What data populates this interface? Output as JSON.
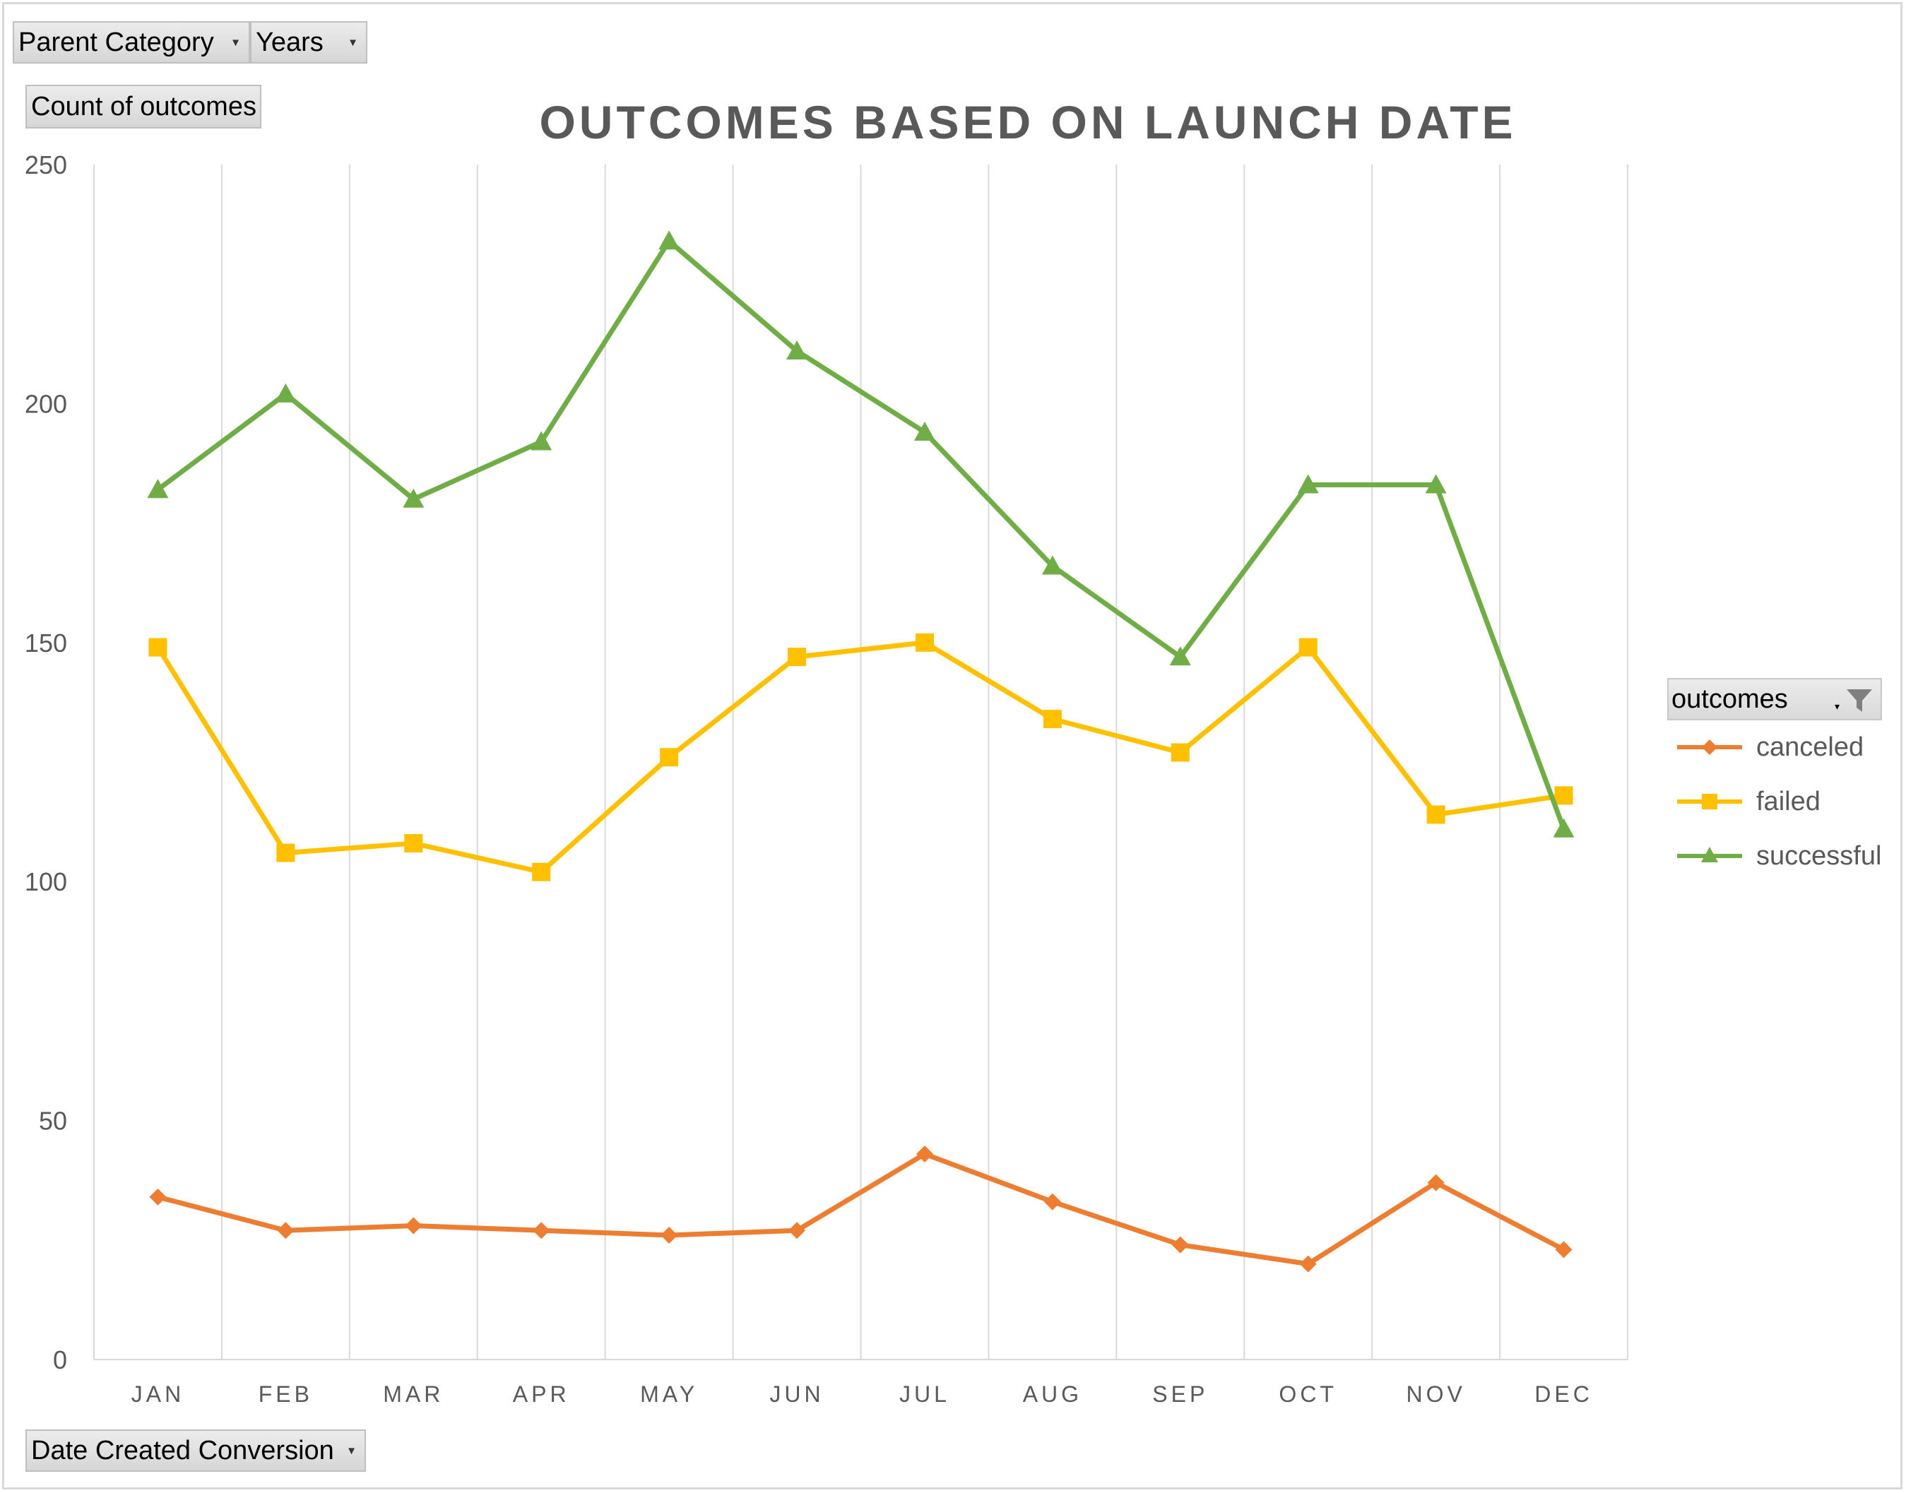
{
  "filters": {
    "parent_category": "Parent Category",
    "years": "Years",
    "values_field": "Count of outcomes",
    "axis_field": "Date Created Conversion"
  },
  "legend": {
    "title": "outcomes",
    "items": [
      "canceled",
      "failed",
      "successful"
    ]
  },
  "colors": {
    "canceled": "#ED7D31",
    "failed": "#FFC000",
    "successful": "#70AD47",
    "gridline": "#d9d9d9",
    "axis_text": "#595959"
  },
  "icons": {
    "filter": "funnel-filter-icon",
    "dropdown": "dropdown-arrow-icon"
  },
  "chart_data": {
    "type": "line",
    "title": "OUTCOMES BASED ON LAUNCH DATE",
    "xlabel": "",
    "ylabel": "",
    "categories": [
      "JAN",
      "FEB",
      "MAR",
      "APR",
      "MAY",
      "JUN",
      "JUL",
      "AUG",
      "SEP",
      "OCT",
      "NOV",
      "DEC"
    ],
    "ylim": [
      0,
      250
    ],
    "yticks": [
      0,
      50,
      100,
      150,
      200,
      250
    ],
    "grid": "vertical",
    "legend_position": "right",
    "series": [
      {
        "name": "canceled",
        "marker": "diamond",
        "values": [
          34,
          27,
          28,
          27,
          26,
          27,
          43,
          33,
          24,
          20,
          37,
          23
        ]
      },
      {
        "name": "failed",
        "marker": "square",
        "values": [
          149,
          106,
          108,
          102,
          126,
          147,
          150,
          134,
          127,
          149,
          114,
          118
        ]
      },
      {
        "name": "successful",
        "marker": "triangle",
        "values": [
          182,
          202,
          180,
          192,
          234,
          211,
          194,
          166,
          147,
          183,
          183,
          111
        ]
      }
    ]
  }
}
